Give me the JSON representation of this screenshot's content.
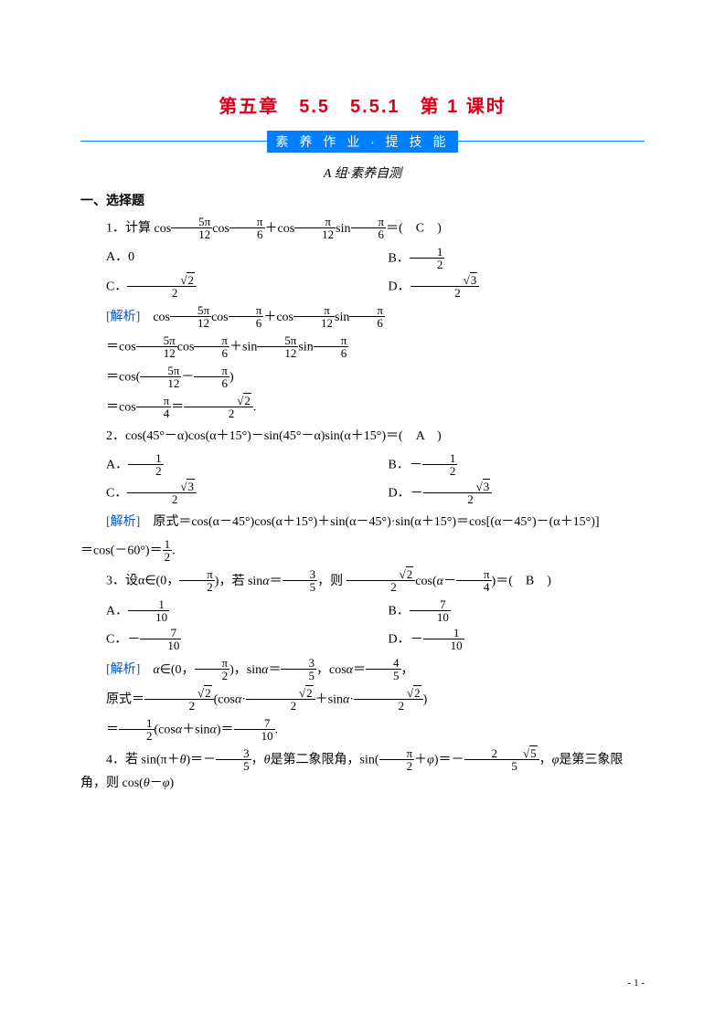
{
  "colors": {
    "title": "#d9001b",
    "banner_bg": "#0080ff",
    "banner_text": "#ffffff",
    "rule": "#0080ff",
    "analysis": "#0055cc",
    "text": "#000000",
    "page_bg": "#ffffff"
  },
  "fonts": {
    "title_family": "SimHei",
    "title_size_pt": 15,
    "body_family": "SimSun",
    "body_size_pt": 10.5,
    "math_family": "Times New Roman"
  },
  "header": {
    "title": "第五章　5.5　5.5.1　第 1 课时",
    "banner": "素 养 作 业 · 提 技 能",
    "group": "A 组·素养自测"
  },
  "section1_heading": "一、选择题",
  "q1": {
    "stem_prefix": "1．计算 ",
    "stem_expr_html": "cos<span class='frac'><span class='n'>5π</span><span class='d'>12</span></span>cos<span class='frac'><span class='n'>π</span><span class='d'>6</span></span>＋cos<span class='frac'><span class='n'>π</span><span class='d'>12</span></span>sin<span class='frac'><span class='n'>π</span><span class='d'>6</span></span>＝",
    "answer_letter": "C",
    "options": {
      "A": "0",
      "B_html": "<span class='frac'><span class='n'>1</span><span class='d'>2</span></span>",
      "C_html": "<span class='frac'><span class='n'><span class='sqrt'><span>2</span></span></span><span class='d'>2</span></span>",
      "D_html": "<span class='frac'><span class='n'><span class='sqrt'><span>3</span></span></span><span class='d'>2</span></span>"
    },
    "analysis_label": "[解析]",
    "analysis_lines_html": [
      "cos<span class='frac'><span class='n'>5π</span><span class='d'>12</span></span>cos<span class='frac'><span class='n'>π</span><span class='d'>6</span></span>＋cos<span class='frac'><span class='n'>π</span><span class='d'>12</span></span>sin<span class='frac'><span class='n'>π</span><span class='d'>6</span></span>",
      "＝cos<span class='frac'><span class='n'>5π</span><span class='d'>12</span></span>cos<span class='frac'><span class='n'>π</span><span class='d'>6</span></span>＋sin<span class='frac'><span class='n'>5π</span><span class='d'>12</span></span>sin<span class='frac'><span class='n'>π</span><span class='d'>6</span></span>",
      "＝cos(<span class='frac'><span class='n'>5π</span><span class='d'>12</span></span>－<span class='frac'><span class='n'>π</span><span class='d'>6</span></span>)",
      "＝cos<span class='frac'><span class='n'>π</span><span class='d'>4</span></span>＝<span class='frac'><span class='n'><span class='sqrt'><span>2</span></span></span><span class='d'>2</span></span>."
    ]
  },
  "q2": {
    "stem": "2．cos(45°－α)cos(α＋15°)－sin(45°－α)sin(α＋15°)＝(　A　)",
    "options": {
      "A_html": "<span class='frac'><span class='n'>1</span><span class='d'>2</span></span>",
      "B_html": "－<span class='frac'><span class='n'>1</span><span class='d'>2</span></span>",
      "C_html": "<span class='frac'><span class='n'><span class='sqrt'><span>3</span></span></span><span class='d'>2</span></span>",
      "D_html": "－<span class='frac'><span class='n'><span class='sqrt'><span>3</span></span></span><span class='d'>2</span></span>"
    },
    "analysis_label": "[解析]",
    "analysis_line1": "原式＝cos(α－45°)cos(α＋15°)＋sin(α－45°)·sin(α＋15°)＝cos[(α－45°)－(α＋15°)]",
    "analysis_line2_html": "＝cos(－60°)＝<span class='frac'><span class='n'>1</span><span class='d'>2</span></span>."
  },
  "q3": {
    "stem_prefix": "3．设α∈(0，",
    "stem_mid_html": "<span class='frac'><span class='n'>π</span><span class='d'>2</span></span>)，若 sin<span class='it'>α</span>＝<span class='frac'><span class='n'>3</span><span class='d'>5</span></span>，则 <span class='frac'><span class='n'><span class='sqrt'><span>2</span></span></span><span class='d'>2</span></span>cos(<span class='it'>α</span>－<span class='frac'><span class='n'>π</span><span class='d'>4</span></span>)＝",
    "answer_letter": "B",
    "options": {
      "A_html": "<span class='frac'><span class='n'>1</span><span class='d'>10</span></span>",
      "B_html": "<span class='frac'><span class='n'>7</span><span class='d'>10</span></span>",
      "C_html": "－<span class='frac'><span class='n'>7</span><span class='d'>10</span></span>",
      "D_html": "－<span class='frac'><span class='n'>1</span><span class='d'>10</span></span>"
    },
    "analysis_label": "[解析]",
    "analysis_lines_html": [
      "<span class='it'>α</span>∈(0，<span class='frac'><span class='n'>π</span><span class='d'>2</span></span>)，sin<span class='it'>α</span>＝<span class='frac'><span class='n'>3</span><span class='d'>5</span></span>，cos<span class='it'>α</span>＝<span class='frac'><span class='n'>4</span><span class='d'>5</span></span>，",
      "原式＝<span class='frac'><span class='n'><span class='sqrt'><span>2</span></span></span><span class='d'>2</span></span>(cos<span class='it'>α</span>·<span class='frac'><span class='n'><span class='sqrt'><span>2</span></span></span><span class='d'>2</span></span>＋sin<span class='it'>α</span>·<span class='frac'><span class='n'><span class='sqrt'><span>2</span></span></span><span class='d'>2</span></span>)",
      "＝<span class='frac'><span class='n'>1</span><span class='d'>2</span></span>(cos<span class='it'>α</span>＋sin<span class='it'>α</span>)＝<span class='frac'><span class='n'>7</span><span class='d'>10</span></span>."
    ]
  },
  "q4": {
    "stem_html": "4．若 sin(π＋<span class='it'>θ</span>)＝－<span class='frac'><span class='n'>3</span><span class='d'>5</span></span>，<span class='it'>θ</span>是第二象限角，sin(<span class='frac'><span class='n'>π</span><span class='d'>2</span></span>＋<span class='it'>φ</span>)＝－<span class='frac'><span class='n'>2<span class='sqrt'><span>5</span></span></span><span class='d'>5</span></span>，<span class='it'>φ</span>是第三象限角，则 cos(<span class='it'>θ</span>－<span class='it'>φ</span>)"
  },
  "page_number": "- 1 -"
}
